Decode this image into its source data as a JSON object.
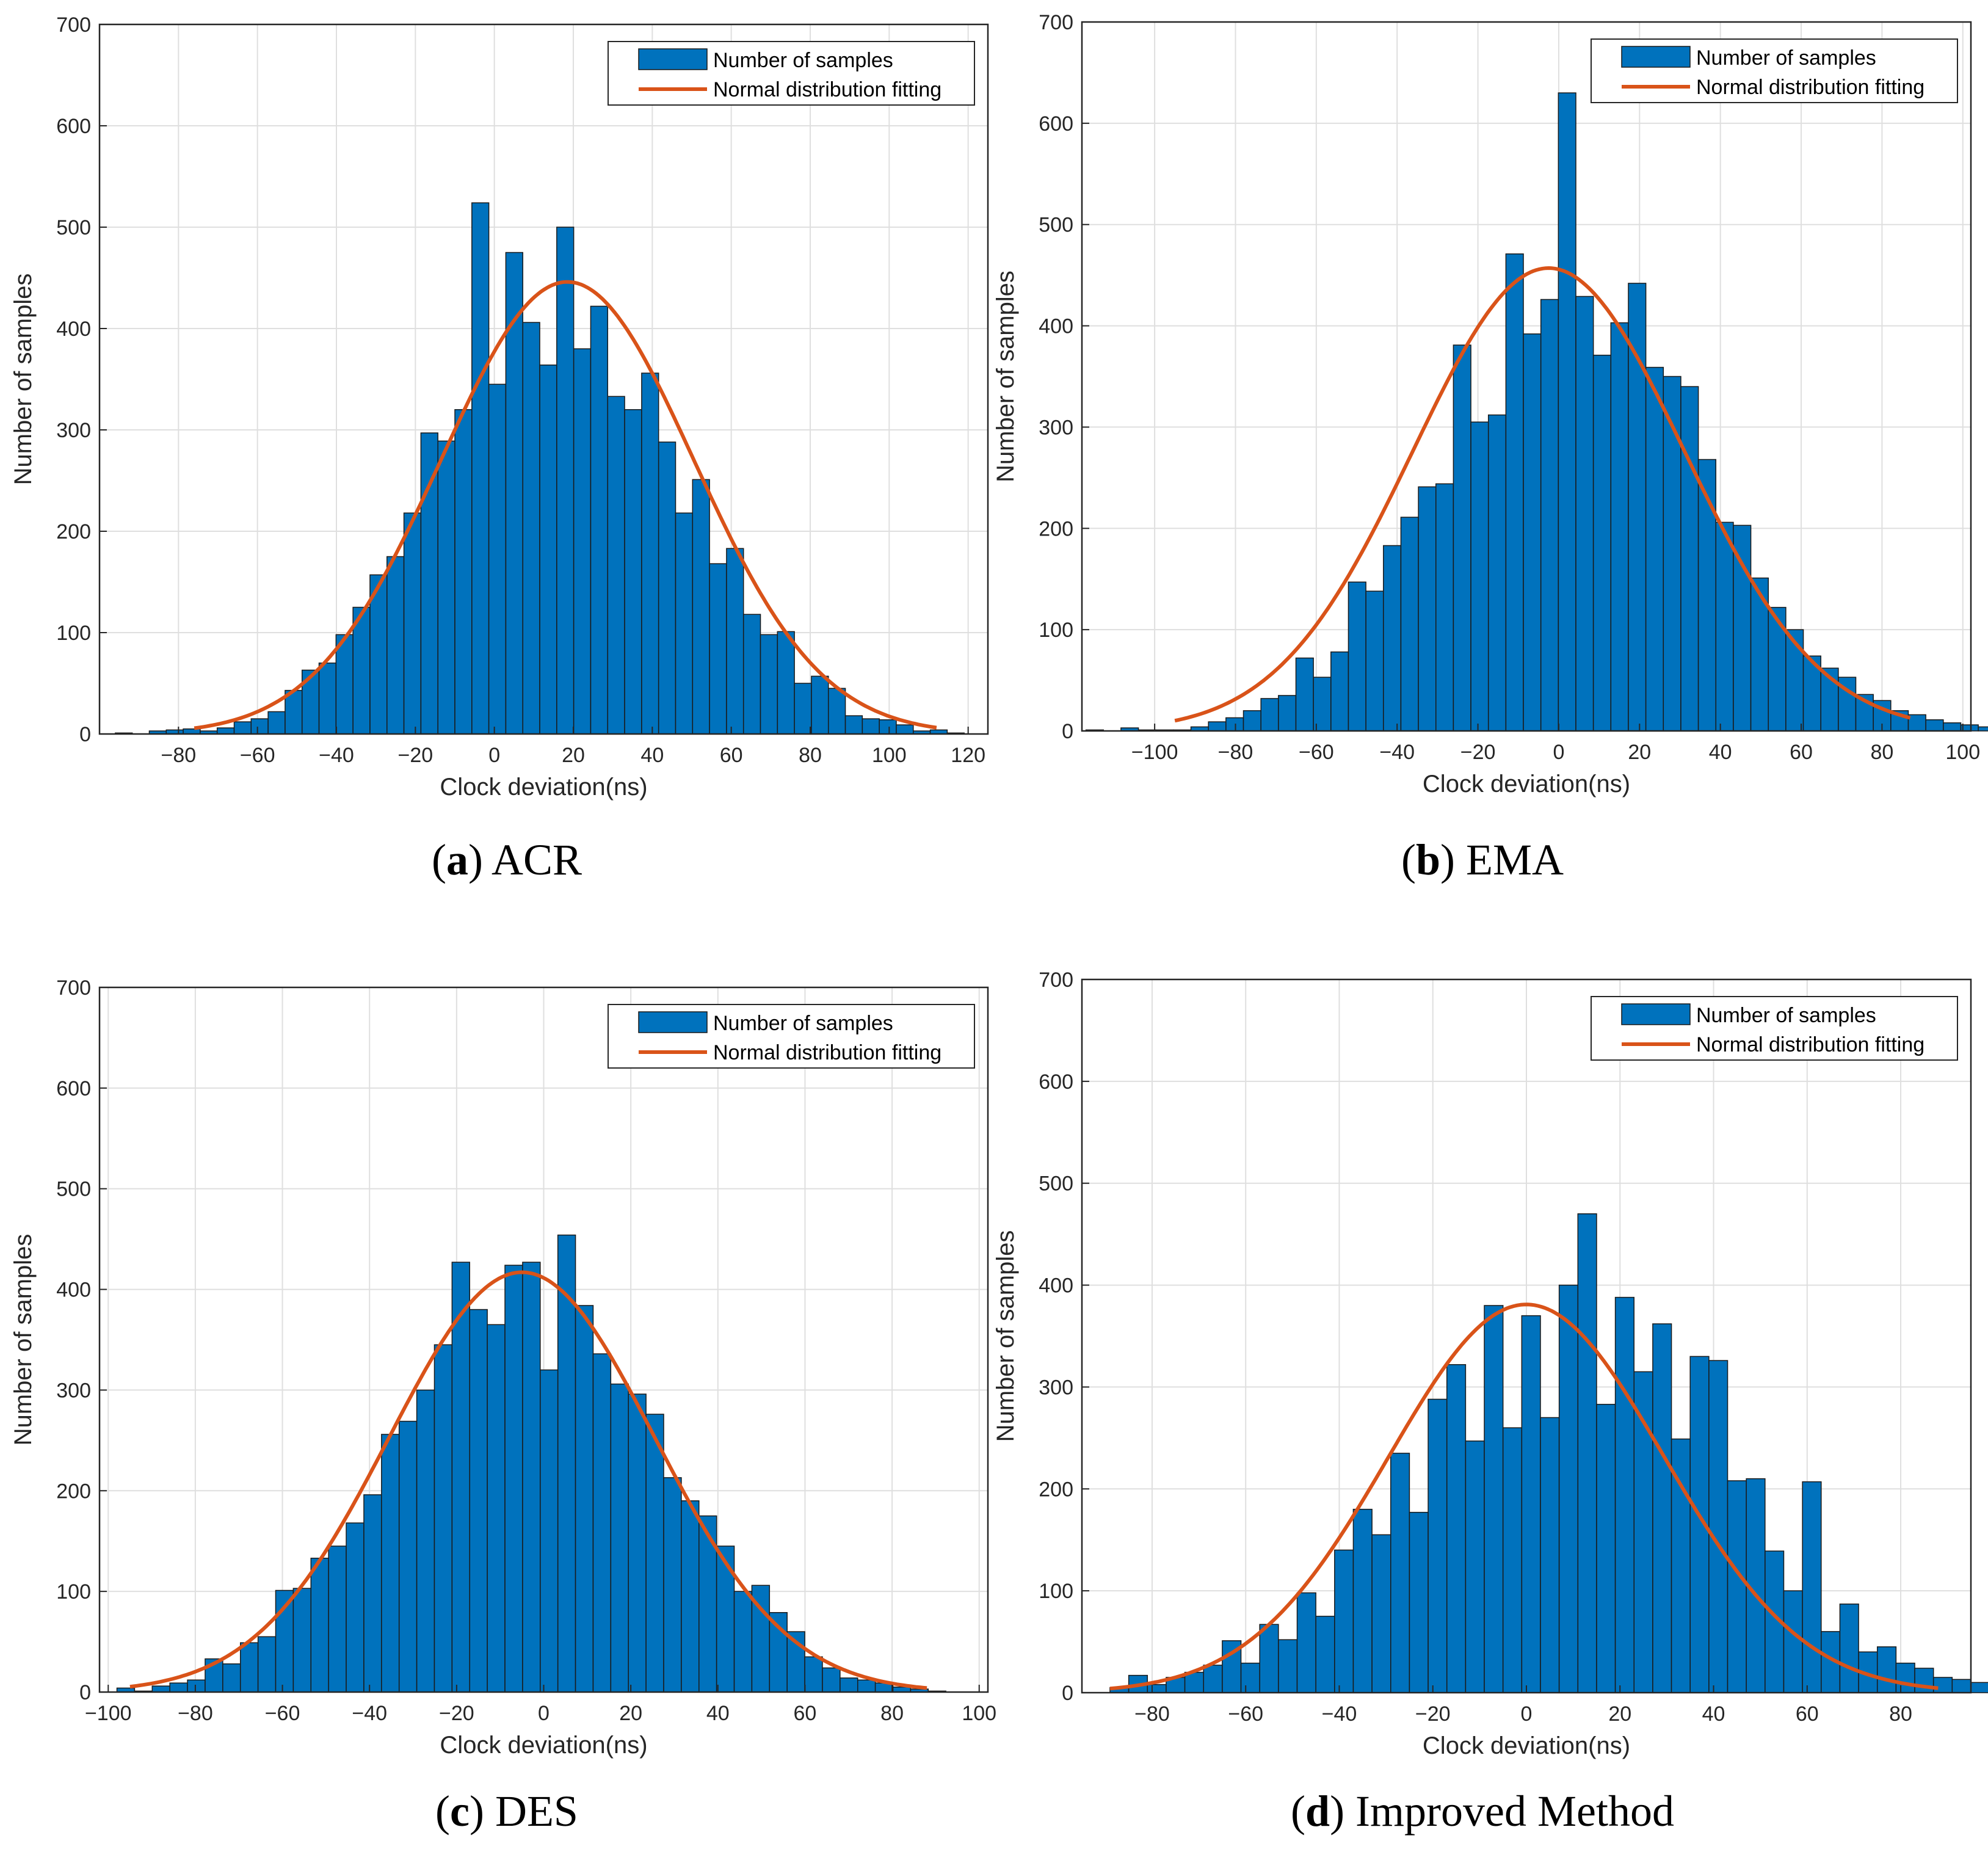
{
  "legend": {
    "bars_label": "Number of samples",
    "fit_label": "Normal distribution fitting"
  },
  "colors": {
    "bars": "#0072bd",
    "fit": "#d95319",
    "grid": "#dfdfdf"
  },
  "chart_data": [
    {
      "type": "bar",
      "caption_letter": "a",
      "caption_text": "ACR",
      "xlabel": "Clock deviation(ns)",
      "ylabel": "Number of samples",
      "xlim": [
        -100,
        125
      ],
      "ylim": [
        0,
        700
      ],
      "xticks": [
        -80,
        -60,
        -40,
        -20,
        0,
        20,
        40,
        60,
        80,
        100,
        120
      ],
      "yticks": [
        0,
        100,
        200,
        300,
        400,
        500,
        600,
        700
      ],
      "grid": true,
      "legend_position": "top-right",
      "bin_start": -96,
      "bin_width": 4.3,
      "counts": [
        1,
        0,
        3,
        4,
        5,
        3,
        6,
        12,
        15,
        22,
        43,
        63,
        70,
        98,
        125,
        157,
        175,
        218,
        297,
        289,
        320,
        524,
        345,
        475,
        406,
        364,
        500,
        380,
        422,
        333,
        320,
        356,
        288,
        218,
        251,
        168,
        183,
        118,
        98,
        101,
        50,
        57,
        45,
        18,
        15,
        14,
        9,
        3,
        4,
        1
      ],
      "fit": {
        "mean": 18.5,
        "sd": 32,
        "peak": 446,
        "x_range": [
          -76,
          112
        ]
      }
    },
    {
      "type": "bar",
      "caption_letter": "b",
      "caption_text": "EMA",
      "xlabel": "Clock deviation(ns)",
      "ylabel": "Number of samples",
      "xlim": [
        -118,
        102
      ],
      "ylim": [
        0,
        700
      ],
      "xticks": [
        -100,
        -80,
        -60,
        -40,
        -20,
        0,
        20,
        40,
        60,
        80,
        100
      ],
      "yticks": [
        0,
        100,
        200,
        300,
        400,
        500,
        600,
        700
      ],
      "grid": true,
      "legend_position": "top-right",
      "bin_start": -117,
      "bin_width": 4.33,
      "counts": [
        1,
        0,
        3,
        1,
        1,
        1,
        4,
        9,
        13,
        20,
        32,
        35,
        72,
        53,
        78,
        147,
        138,
        183,
        211,
        241,
        244,
        381,
        305,
        312,
        471,
        392,
        426,
        630,
        429,
        371,
        403,
        442,
        359,
        350,
        340,
        268,
        206,
        203,
        151,
        122,
        100,
        74,
        62,
        53,
        36,
        30,
        20,
        16,
        11,
        8,
        6,
        4,
        2
      ],
      "fit": {
        "mean": -2.5,
        "sd": 33.5,
        "peak": 457,
        "x_range": [
          -95,
          87
        ]
      }
    },
    {
      "type": "bar",
      "caption_letter": "c",
      "caption_text": "DES",
      "xlabel": "Clock deviation(ns)",
      "ylabel": "Number of samples",
      "xlim": [
        -102,
        102
      ],
      "ylim": [
        0,
        700
      ],
      "xticks": [
        -100,
        -80,
        -60,
        -40,
        -20,
        0,
        20,
        40,
        60,
        80,
        100
      ],
      "yticks": [
        0,
        100,
        200,
        300,
        400,
        500,
        600,
        700
      ],
      "grid": true,
      "legend_position": "top-right",
      "bin_start": -98,
      "bin_width": 4.05,
      "counts": [
        4,
        1,
        6,
        9,
        12,
        33,
        28,
        49,
        55,
        101,
        103,
        133,
        145,
        168,
        196,
        256,
        269,
        300,
        345,
        427,
        380,
        365,
        424,
        427,
        320,
        454,
        384,
        336,
        306,
        296,
        276,
        213,
        190,
        175,
        145,
        100,
        106,
        79,
        60,
        35,
        24,
        14,
        12,
        9,
        5,
        3,
        1
      ],
      "fit": {
        "mean": -5,
        "sd": 30.5,
        "peak": 417,
        "x_range": [
          -95,
          88
        ]
      }
    },
    {
      "type": "bar",
      "caption_letter": "d",
      "caption_text": "Improved Method",
      "xlabel": "Clock deviation(ns)",
      "ylabel": "Number of samples",
      "xlim": [
        -95,
        95
      ],
      "ylim": [
        0,
        700
      ],
      "xticks": [
        -80,
        -60,
        -40,
        -20,
        0,
        20,
        40,
        60,
        80
      ],
      "yticks": [
        0,
        100,
        200,
        300,
        400,
        500,
        600,
        700
      ],
      "grid": true,
      "legend_position": "top-right",
      "bin_start": -89,
      "bin_width": 4,
      "counts": [
        5,
        17,
        8,
        15,
        20,
        27,
        51,
        29,
        67,
        52,
        98,
        75,
        140,
        180,
        155,
        235,
        177,
        288,
        322,
        247,
        380,
        260,
        370,
        270,
        400,
        470,
        283,
        388,
        315,
        362,
        249,
        330,
        326,
        208,
        210,
        139,
        100,
        207,
        60,
        87,
        40,
        45,
        29,
        24,
        15,
        13,
        10,
        6
      ],
      "fit": {
        "mean": 0,
        "sd": 29.5,
        "peak": 381,
        "x_range": [
          -89,
          88
        ]
      }
    }
  ]
}
